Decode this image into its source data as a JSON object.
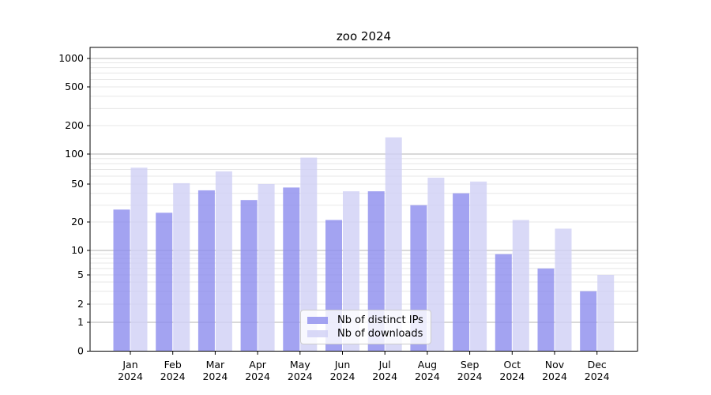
{
  "chart_data": {
    "type": "bar",
    "title": "zoo 2024",
    "x_tick_line2": "2024",
    "categories": [
      "Jan",
      "Feb",
      "Mar",
      "Apr",
      "May",
      "Jun",
      "Jul",
      "Aug",
      "Sep",
      "Oct",
      "Nov",
      "Dec"
    ],
    "series": [
      {
        "name": "Nb of distinct IPs",
        "color": "#8c8cee",
        "opacity": 0.8,
        "values": [
          27,
          25,
          43,
          34,
          46,
          21,
          42,
          30,
          40,
          9,
          6,
          3
        ]
      },
      {
        "name": "Nb of downloads",
        "color": "#cfcff5",
        "opacity": 0.8,
        "values": [
          73,
          51,
          67,
          50,
          92,
          42,
          150,
          58,
          53,
          21,
          17,
          5
        ]
      }
    ],
    "y_ticks": [
      0,
      1,
      2,
      5,
      10,
      20,
      50,
      100,
      200,
      500,
      1000
    ],
    "y_scale": "log-like (linear 0-1, log above)",
    "ylim": [
      0,
      1778
    ],
    "grid": true,
    "major_grid_values": [
      1,
      10,
      100,
      1000
    ],
    "legend_position": "lower center",
    "colors": {
      "major_grid": "#b3b3b3",
      "minor_grid": "#e7e7e7",
      "axis": "#000000",
      "background": "#ffffff"
    }
  }
}
